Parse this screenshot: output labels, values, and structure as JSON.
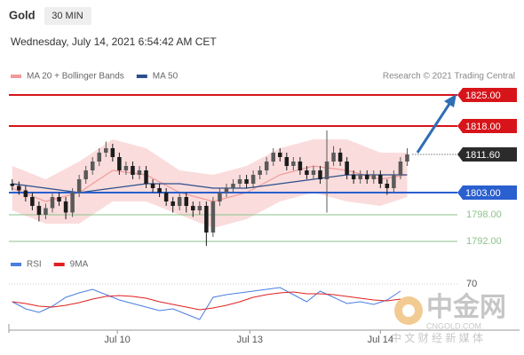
{
  "header": {
    "symbol": "Gold",
    "timeframe": "30 MIN",
    "datetime": "Wednesday, July 14, 2021 6:54:42 AM CET",
    "credit": "Research © 2021 Trading Central"
  },
  "watermark": {
    "name": "中金网",
    "site": "CNGOLD.COM",
    "tagline": "中 文 财 经 新 媒 体"
  },
  "chart_data": [
    {
      "type": "candlestick",
      "x": [
        0,
        1,
        2,
        3,
        4,
        5,
        6,
        7,
        8,
        9,
        10,
        11,
        12,
        13,
        14,
        15,
        16,
        17,
        18,
        19,
        20,
        21,
        22,
        23,
        24,
        25,
        26,
        27,
        28,
        29,
        30,
        31,
        32,
        33,
        34,
        35,
        36,
        37,
        38,
        39,
        40,
        41,
        42,
        43,
        44,
        45,
        46,
        47,
        48,
        49,
        50,
        51,
        52,
        53,
        54,
        55,
        56,
        57,
        58,
        59
      ],
      "open": [
        1805,
        1804.5,
        1803.5,
        1802,
        1800,
        1798,
        1799.5,
        1802,
        1801,
        1798.5,
        1803,
        1806,
        1808,
        1810,
        1812,
        1813,
        1811,
        1808,
        1809,
        1807,
        1808,
        1805,
        1804,
        1803,
        1801,
        1800,
        1802,
        1800,
        1799,
        1800,
        1794,
        1801,
        1803,
        1804,
        1805,
        1806,
        1805,
        1807,
        1808,
        1810,
        1812,
        1811,
        1809,
        1810,
        1808,
        1807,
        1808,
        1806,
        1810,
        1812,
        1810,
        1807,
        1806,
        1807,
        1806,
        1807,
        1805,
        1804,
        1807,
        1810
      ],
      "high": [
        1806,
        1805.5,
        1804.5,
        1803,
        1801,
        1800.5,
        1803,
        1803,
        1802,
        1804,
        1807,
        1809,
        1811,
        1813,
        1814.5,
        1814,
        1812,
        1810,
        1810,
        1809,
        1809,
        1806,
        1805,
        1804,
        1802,
        1803,
        1803,
        1801,
        1801,
        1801,
        1802,
        1804,
        1805,
        1806,
        1807,
        1807,
        1808,
        1809,
        1811,
        1813,
        1813,
        1812,
        1811,
        1811,
        1809,
        1809,
        1809,
        1817,
        1813.5,
        1813,
        1811,
        1808,
        1808,
        1808,
        1808,
        1808,
        1806,
        1808,
        1811,
        1813
      ],
      "low": [
        1803.5,
        1802.5,
        1801,
        1799,
        1796.5,
        1797,
        1798.5,
        1800,
        1797,
        1797.5,
        1802,
        1805,
        1807,
        1809,
        1811,
        1810,
        1807,
        1807,
        1806,
        1806,
        1804,
        1803,
        1802,
        1800,
        1798.5,
        1799,
        1798.5,
        1797.5,
        1798,
        1791,
        1793,
        1800,
        1802,
        1803,
        1804,
        1804,
        1804,
        1806,
        1807,
        1809,
        1810,
        1808,
        1808,
        1807,
        1806,
        1806,
        1805,
        1798.5,
        1809,
        1809,
        1806,
        1805,
        1805,
        1805,
        1805,
        1804,
        1802.5,
        1803,
        1806,
        1809
      ],
      "close": [
        1804.5,
        1803.5,
        1802,
        1800,
        1798,
        1799.5,
        1802,
        1801,
        1798.5,
        1803,
        1806,
        1808,
        1810,
        1812,
        1813,
        1811,
        1808,
        1809,
        1807,
        1808,
        1805,
        1804,
        1803,
        1801,
        1800,
        1802,
        1800,
        1799,
        1800,
        1794,
        1801,
        1803,
        1804,
        1805,
        1806,
        1805,
        1807,
        1808,
        1810,
        1812,
        1811,
        1809,
        1810,
        1808,
        1807,
        1808,
        1806,
        1810,
        1812,
        1810,
        1807,
        1806,
        1807,
        1806,
        1807,
        1805,
        1804,
        1807,
        1810,
        1811.6
      ],
      "up_color": "#5a5a5a",
      "down_color": "#1c1c1c",
      "xlim": [
        -0.5,
        66.5
      ],
      "ylim": [
        1789.4,
        1827.4
      ],
      "xticks": [
        {
          "value": 15.7,
          "label": "Jul 10"
        },
        {
          "value": 35.5,
          "label": "Jul 13"
        },
        {
          "value": 55,
          "label": "Jul 14"
        }
      ],
      "levels": [
        {
          "value": 1825,
          "label": "1825.00",
          "color": "#d7141a",
          "style": "box"
        },
        {
          "value": 1818,
          "label": "1818.00",
          "color": "#d7141a",
          "style": "box"
        },
        {
          "value": 1811.6,
          "label": "1811.60",
          "color": "#2b2b2b",
          "style": "current"
        },
        {
          "value": 1803,
          "label": "1803.00",
          "color": "#2a5fcf",
          "style": "box"
        },
        {
          "value": 1798,
          "label": "1798.00",
          "color": "#8cc38c",
          "style": "text"
        },
        {
          "value": 1792,
          "label": "1792.00",
          "color": "#8cc38c",
          "style": "text"
        }
      ],
      "series": [
        {
          "name": "MA 20 + Bollinger Bands",
          "color": "#f29a9a",
          "x": [
            0,
            5,
            10,
            15,
            20,
            25,
            30,
            35,
            40,
            45,
            50,
            55,
            59
          ],
          "values": [
            1804,
            1801,
            1803,
            1808,
            1807,
            1803,
            1801,
            1803,
            1807,
            1809,
            1808,
            1806,
            1807
          ],
          "upper": [
            1809,
            1806,
            1810,
            1815,
            1813,
            1808,
            1807,
            1809,
            1813,
            1815,
            1815,
            1812,
            1812
          ],
          "lower": [
            1799,
            1796,
            1796,
            1801,
            1801,
            1798,
            1795,
            1797,
            1801,
            1803,
            1801,
            1800,
            1802
          ]
        },
        {
          "name": "MA 50",
          "color": "#2b4f8c",
          "x": [
            0,
            5,
            10,
            15,
            20,
            25,
            30,
            35,
            40,
            45,
            50,
            55,
            59
          ],
          "values": [
            1805,
            1804,
            1803,
            1804,
            1805,
            1805,
            1804,
            1804,
            1805,
            1806,
            1807,
            1807,
            1807
          ]
        }
      ]
    },
    {
      "type": "line",
      "x": [
        0,
        2,
        4,
        6,
        8,
        10,
        12,
        14,
        16,
        18,
        20,
        22,
        24,
        26,
        28,
        30,
        32,
        34,
        36,
        38,
        40,
        42,
        44,
        46,
        48,
        50,
        52,
        54,
        56,
        58
      ],
      "xlim": [
        -0.5,
        66.5
      ],
      "ylim": [
        20,
        80
      ],
      "yticks": [
        70
      ],
      "series": [
        {
          "name": "RSI",
          "color": "#4a7de0",
          "values": [
            50,
            42,
            38,
            45,
            55,
            60,
            64,
            58,
            52,
            48,
            44,
            40,
            42,
            36,
            30,
            55,
            58,
            60,
            62,
            64,
            66,
            58,
            50,
            62,
            55,
            48,
            50,
            47,
            52,
            62
          ]
        },
        {
          "name": "9MA",
          "color": "#e02020",
          "values": [
            50,
            48,
            45,
            44,
            46,
            49,
            53,
            56,
            57,
            56,
            54,
            50,
            47,
            44,
            41,
            43,
            46,
            50,
            55,
            58,
            60,
            61,
            59,
            59,
            58,
            56,
            54,
            52,
            51,
            53
          ]
        }
      ]
    }
  ]
}
